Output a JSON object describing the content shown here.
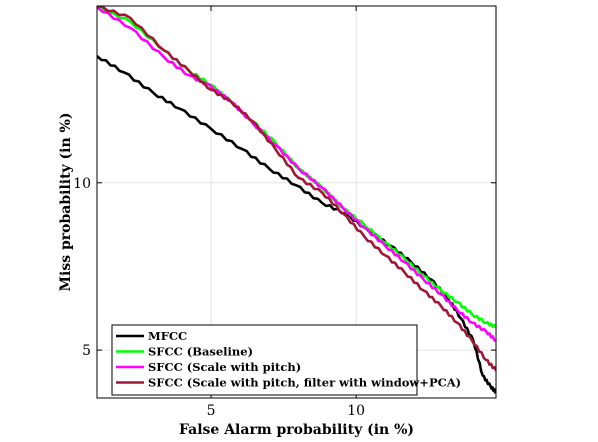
{
  "chart_data": {
    "type": "line",
    "xlabel": "False Alarm probability (in %)",
    "ylabel": "Miss probability (in %)",
    "xscale": "log",
    "yscale": "log",
    "xlim": [
      2.9,
      19.5
    ],
    "ylim": [
      4.1,
      20.8
    ],
    "xticks": [
      5,
      10
    ],
    "yticks": [
      5,
      10
    ],
    "grid": true,
    "legend_position": "bottom-left",
    "series": [
      {
        "name": "MFCC",
        "color": "#000000",
        "x": [
          2.9,
          3.3,
          3.8,
          4.3,
          5.0,
          5.8,
          6.6,
          7.5,
          8.5,
          9.5,
          10.6,
          11.8,
          13.0,
          14.3,
          15.5,
          16.5,
          17.5,
          18.3,
          19.0,
          19.5
        ],
        "y": [
          16.9,
          15.8,
          14.5,
          13.6,
          12.5,
          11.5,
          10.6,
          9.9,
          9.2,
          8.8,
          8.2,
          7.7,
          7.2,
          6.7,
          6.2,
          5.7,
          5.2,
          4.5,
          4.3,
          4.2
        ]
      },
      {
        "name": "SFCC (Baseline)",
        "color": "#00ff00",
        "x": [
          2.9,
          3.4,
          4.0,
          4.5,
          5.0,
          5.5,
          6.1,
          6.8,
          7.6,
          8.5,
          9.4,
          10.4,
          11.5,
          12.6,
          13.8,
          15.0,
          16.2,
          17.4,
          18.6,
          19.5
        ],
        "y": [
          20.7,
          19.5,
          17.3,
          15.9,
          15.0,
          14.0,
          12.9,
          11.8,
          10.6,
          9.8,
          9.0,
          8.4,
          7.8,
          7.3,
          6.8,
          6.4,
          6.1,
          5.8,
          5.6,
          5.5
        ]
      },
      {
        "name": "SFCC (Scale with pitch)",
        "color": "#ff00ff",
        "x": [
          2.9,
          3.4,
          4.0,
          4.5,
          5.0,
          5.5,
          6.1,
          6.8,
          7.6,
          8.5,
          9.4,
          10.4,
          11.5,
          12.6,
          13.8,
          15.0,
          16.2,
          17.4,
          18.6,
          19.5
        ],
        "y": [
          20.7,
          19.0,
          16.8,
          15.6,
          14.9,
          14.0,
          12.8,
          11.7,
          10.6,
          9.8,
          9.0,
          8.3,
          7.7,
          7.2,
          6.7,
          6.3,
          5.9,
          5.6,
          5.4,
          5.2
        ]
      },
      {
        "name": "SFCC (Scale with pitch, filter with window+PCA)",
        "color": "#a01838",
        "x": [
          2.9,
          3.4,
          4.0,
          4.5,
          5.0,
          5.5,
          6.1,
          6.8,
          7.6,
          8.5,
          9.4,
          10.4,
          11.5,
          12.6,
          13.8,
          15.0,
          16.2,
          17.4,
          18.6,
          19.5
        ],
        "y": [
          20.8,
          19.8,
          17.3,
          15.9,
          14.7,
          14.0,
          12.9,
          11.5,
          10.2,
          9.6,
          8.8,
          8.0,
          7.4,
          6.9,
          6.4,
          6.0,
          5.6,
          5.2,
          4.8,
          4.6
        ]
      }
    ]
  }
}
